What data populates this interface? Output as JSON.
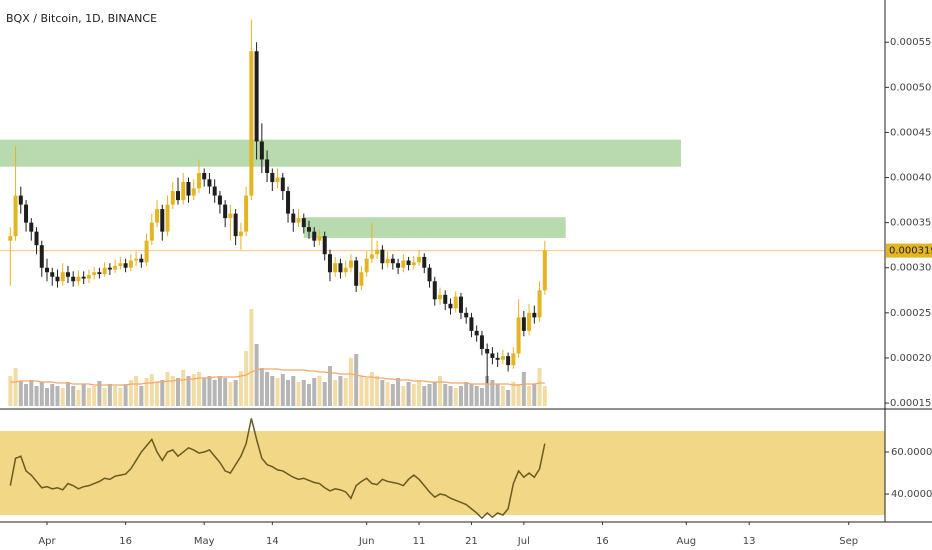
{
  "chart_data": {
    "type": "candlestick",
    "title": "BQX / Bitcoin, 1D, BINANCE",
    "x": [
      "03-25",
      "03-26",
      "03-27",
      "03-28",
      "03-29",
      "03-30",
      "03-31",
      "04-01",
      "04-02",
      "04-03",
      "04-04",
      "04-05",
      "04-06",
      "04-07",
      "04-08",
      "04-09",
      "04-10",
      "04-11",
      "04-12",
      "04-13",
      "04-14",
      "04-15",
      "04-16",
      "04-17",
      "04-18",
      "04-19",
      "04-20",
      "04-21",
      "04-22",
      "04-23",
      "04-24",
      "04-25",
      "04-26",
      "04-27",
      "04-28",
      "04-29",
      "04-30",
      "05-01",
      "05-02",
      "05-03",
      "05-04",
      "05-05",
      "05-06",
      "05-07",
      "05-08",
      "05-09",
      "05-10",
      "05-11",
      "05-12",
      "05-13",
      "05-14",
      "05-15",
      "05-16",
      "05-17",
      "05-18",
      "05-19",
      "05-20",
      "05-21",
      "05-22",
      "05-23",
      "05-24",
      "05-25",
      "05-26",
      "05-27",
      "05-28",
      "05-29",
      "05-30",
      "05-31",
      "06-01",
      "06-02",
      "06-03",
      "06-04",
      "06-05",
      "06-06",
      "06-07",
      "06-08",
      "06-09",
      "06-10",
      "06-11",
      "06-12",
      "06-13",
      "06-14",
      "06-15",
      "06-16",
      "06-17",
      "06-18",
      "06-19",
      "06-20",
      "06-21",
      "06-22",
      "06-23",
      "06-24",
      "06-25",
      "06-26",
      "06-27",
      "06-28",
      "06-29",
      "06-30",
      "07-01",
      "07-02",
      "07-03",
      "07-04",
      "07-05"
    ],
    "open": [
      0.00033,
      0.000335,
      0.00038,
      0.00037,
      0.00035,
      0.00034,
      0.000325,
      0.0003,
      0.000295,
      0.00029,
      0.000285,
      0.000295,
      0.00029,
      0.000285,
      0.00029,
      0.000288,
      0.000292,
      0.000295,
      0.000293,
      0.0003,
      0.000298,
      0.000302,
      0.000305,
      0.0003,
      0.000308,
      0.00031,
      0.000306,
      0.00033,
      0.00035,
      0.000365,
      0.00034,
      0.00037,
      0.000385,
      0.000375,
      0.000395,
      0.00038,
      0.000388,
      0.000405,
      0.000398,
      0.00039,
      0.00038,
      0.00037,
      0.000355,
      0.00036,
      0.000335,
      0.00034,
      0.00038,
      0.00054,
      0.00044,
      0.00042,
      0.000405,
      0.000395,
      0.0004,
      0.000385,
      0.00036,
      0.00035,
      0.000355,
      0.000345,
      0.00034,
      0.00033,
      0.000335,
      0.000315,
      0.000295,
      0.000305,
      0.000295,
      0.0003,
      0.000308,
      0.00028,
      0.000295,
      0.00031,
      0.000315,
      0.00032,
      0.000305,
      0.00031,
      0.000305,
      0.0003,
      0.000308,
      0.000303,
      0.000306,
      0.000312,
      0.0003,
      0.000285,
      0.000265,
      0.00027,
      0.00026,
      0.000255,
      0.000268,
      0.00025,
      0.000245,
      0.00023,
      0.000225,
      0.00021,
      0.000205,
      0.0002,
      0.000198,
      0.000202,
      0.000192,
      0.000205,
      0.000245,
      0.00023,
      0.00025,
      0.000245,
      0.000275
    ],
    "high": [
      0.000345,
      0.000435,
      0.00039,
      0.000375,
      0.000355,
      0.000345,
      0.00033,
      0.00031,
      0.0003,
      0.000298,
      0.000305,
      0.000302,
      0.000296,
      0.000297,
      0.000296,
      0.000298,
      0.000301,
      0.0003,
      0.000306,
      0.000305,
      0.000309,
      0.000312,
      0.00031,
      0.000315,
      0.000318,
      0.000315,
      0.000338,
      0.00036,
      0.000375,
      0.00037,
      0.00038,
      0.000395,
      0.0004,
      0.000405,
      0.0004,
      0.000398,
      0.00042,
      0.00041,
      0.000405,
      0.000398,
      0.000385,
      0.000375,
      0.00037,
      0.000365,
      0.00035,
      0.00039,
      0.000575,
      0.00055,
      0.00046,
      0.00043,
      0.00041,
      0.00041,
      0.000405,
      0.00039,
      0.000365,
      0.000365,
      0.00036,
      0.000352,
      0.000345,
      0.000342,
      0.00034,
      0.00032,
      0.000312,
      0.00031,
      0.000308,
      0.000315,
      0.000312,
      0.000302,
      0.000318,
      0.00035,
      0.00033,
      0.000325,
      0.000318,
      0.000315,
      0.00031,
      0.000315,
      0.000312,
      0.000313,
      0.00032,
      0.000316,
      0.000304,
      0.00029,
      0.000278,
      0.000275,
      0.000266,
      0.000274,
      0.000272,
      0.000256,
      0.00025,
      0.000236,
      0.00023,
      0.000216,
      0.000212,
      0.000206,
      0.000209,
      0.000206,
      0.000212,
      0.000265,
      0.000252,
      0.00026,
      0.000258,
      0.000285,
      0.00033
    ],
    "low": [
      0.00028,
      0.00033,
      0.00036,
      0.00034,
      0.00033,
      0.000315,
      0.00029,
      0.000285,
      0.00028,
      0.000278,
      0.00028,
      0.000283,
      0.000279,
      0.00028,
      0.000282,
      0.000283,
      0.000287,
      0.000288,
      0.00029,
      0.000292,
      0.000294,
      0.000298,
      0.000295,
      0.000296,
      0.000302,
      0.0003,
      0.000302,
      0.000325,
      0.000345,
      0.00033,
      0.000335,
      0.000365,
      0.00037,
      0.00037,
      0.000372,
      0.000375,
      0.000383,
      0.00039,
      0.000382,
      0.000372,
      0.00036,
      0.000345,
      0.00033,
      0.000325,
      0.00032,
      0.000335,
      0.000375,
      0.00042,
      0.000405,
      0.000395,
      0.000385,
      0.000388,
      0.000375,
      0.00035,
      0.00034,
      0.000345,
      0.000338,
      0.000332,
      0.000323,
      0.000325,
      0.000308,
      0.000285,
      0.00029,
      0.000288,
      0.00029,
      0.000295,
      0.000273,
      0.000275,
      0.00029,
      0.000305,
      0.00031,
      0.000298,
      0.0003,
      0.000298,
      0.000293,
      0.000295,
      0.000297,
      0.000298,
      0.000302,
      0.000294,
      0.000278,
      0.000258,
      0.000259,
      0.000253,
      0.000248,
      0.00025,
      0.000243,
      0.000238,
      0.000223,
      0.000218,
      0.000203,
      0.000172,
      0.000193,
      0.00019,
      0.000193,
      0.000185,
      0.000188,
      0.0002,
      0.000224,
      0.000225,
      0.000238,
      0.00024,
      0.00027
    ],
    "close": [
      0.000335,
      0.00038,
      0.00037,
      0.00035,
      0.00034,
      0.000325,
      0.0003,
      0.000295,
      0.00029,
      0.000285,
      0.000295,
      0.00029,
      0.000285,
      0.00029,
      0.000288,
      0.000292,
      0.000295,
      0.000293,
      0.0003,
      0.000298,
      0.000302,
      0.000305,
      0.0003,
      0.000308,
      0.00031,
      0.000306,
      0.00033,
      0.00035,
      0.000365,
      0.00034,
      0.00037,
      0.000385,
      0.000375,
      0.000395,
      0.00038,
      0.000388,
      0.000405,
      0.000398,
      0.00039,
      0.00038,
      0.00037,
      0.000355,
      0.00036,
      0.000335,
      0.00034,
      0.00038,
      0.00054,
      0.00044,
      0.00042,
      0.000405,
      0.000395,
      0.0004,
      0.000385,
      0.00036,
      0.00035,
      0.000355,
      0.000345,
      0.00034,
      0.00033,
      0.000335,
      0.000315,
      0.000295,
      0.000305,
      0.000295,
      0.0003,
      0.000308,
      0.00028,
      0.000295,
      0.00031,
      0.000315,
      0.00032,
      0.000305,
      0.00031,
      0.000305,
      0.0003,
      0.000308,
      0.000303,
      0.000306,
      0.000312,
      0.0003,
      0.000285,
      0.000265,
      0.00027,
      0.00026,
      0.000255,
      0.000268,
      0.00025,
      0.000245,
      0.00023,
      0.000225,
      0.00021,
      0.000205,
      0.0002,
      0.000198,
      0.000202,
      0.000192,
      0.000205,
      0.000245,
      0.00023,
      0.00025,
      0.000245,
      0.000275,
      0.00031902
    ],
    "up_color": "#e5b423",
    "down_color": "#1e1e1e",
    "price_line_color": "#f3c77a",
    "ylim": [
      0.0001445,
      0.0005968
    ],
    "yticks": [
      {
        "value": 0.00015,
        "label": "0.00015000"
      },
      {
        "value": 0.0002,
        "label": "0.00020000"
      },
      {
        "value": 0.00025,
        "label": "0.00025000"
      },
      {
        "value": 0.0003,
        "label": "0.00030000"
      },
      {
        "value": 0.00035,
        "label": "0.00035000"
      },
      {
        "value": 0.0004,
        "label": "0.00040000"
      },
      {
        "value": 0.00045,
        "label": "0.00045000"
      },
      {
        "value": 0.0005,
        "label": "0.00050000"
      },
      {
        "value": 0.00055,
        "label": "0.00055000"
      }
    ],
    "xticks": [
      {
        "value": "04-01",
        "label": "Apr"
      },
      {
        "value": "04-16",
        "label": "16"
      },
      {
        "value": "05-01",
        "label": "May"
      },
      {
        "value": "05-14",
        "label": "14"
      },
      {
        "value": "06-01",
        "label": "Jun"
      },
      {
        "value": "06-11",
        "label": "11"
      },
      {
        "value": "06-21",
        "label": "21"
      },
      {
        "value": "07-01",
        "label": "Jul"
      },
      {
        "value": "07-16",
        "label": "16"
      },
      {
        "value": "08-01",
        "label": "Aug"
      },
      {
        "value": "08-13",
        "label": "13"
      },
      {
        "value": "09-01",
        "label": "Sep"
      }
    ],
    "zones": [
      {
        "x": [
          "03-23",
          "07-31"
        ],
        "y": [
          0.000412,
          0.000442
        ]
      },
      {
        "x": [
          "05-20",
          "07-09"
        ],
        "y": [
          0.000333,
          0.000356
        ]
      }
    ],
    "zone_color": "#9fcf93",
    "volume": {
      "values": [
        30,
        38,
        25,
        22,
        26,
        20,
        24,
        18,
        22,
        20,
        18,
        24,
        20,
        16,
        22,
        18,
        20,
        25,
        18,
        22,
        20,
        18,
        22,
        26,
        30,
        20,
        28,
        32,
        24,
        26,
        34,
        30,
        28,
        36,
        30,
        32,
        34,
        28,
        30,
        26,
        30,
        28,
        24,
        26,
        35,
        55,
        97,
        62,
        38,
        34,
        30,
        28,
        32,
        26,
        30,
        24,
        26,
        22,
        28,
        30,
        24,
        40,
        26,
        30,
        28,
        48,
        52,
        30,
        28,
        34,
        30,
        26,
        24,
        22,
        28,
        20,
        24,
        22,
        26,
        20,
        22,
        24,
        30,
        22,
        20,
        18,
        20,
        24,
        22,
        20,
        18,
        30,
        26,
        22,
        20,
        16,
        24,
        22,
        34,
        20,
        22,
        38,
        20
      ],
      "ma": [
        24,
        24,
        25,
        25,
        25,
        25,
        24,
        24,
        24,
        23,
        23,
        23,
        22,
        22,
        22,
        22,
        21,
        21,
        21,
        21,
        21,
        21,
        21,
        22,
        22,
        22,
        23,
        23,
        24,
        24,
        25,
        25,
        26,
        26,
        27,
        27,
        28,
        28,
        28,
        29,
        29,
        29,
        29,
        29,
        30,
        31,
        34,
        36,
        37,
        37,
        37,
        37,
        36,
        36,
        36,
        36,
        36,
        35,
        35,
        34,
        34,
        33,
        33,
        32,
        32,
        32,
        31,
        30,
        29,
        29,
        28,
        28,
        27,
        27,
        26,
        26,
        26,
        25,
        25,
        25,
        24,
        24,
        24,
        24,
        23,
        23,
        23,
        23,
        22,
        22,
        22,
        22,
        22,
        22,
        22,
        22,
        21,
        21,
        22,
        22,
        22,
        23,
        23
      ],
      "up_color": "#f2dca4",
      "down_color": "#b5b5b5",
      "ma_color": "#f4a66a"
    },
    "rsi": {
      "values": [
        44,
        57,
        58,
        51,
        49,
        46,
        43,
        43.5,
        42.5,
        43,
        42,
        45,
        44,
        42.5,
        43.5,
        44,
        45,
        46,
        47.5,
        47,
        48.5,
        49,
        49.5,
        52,
        56,
        60,
        63,
        66,
        60,
        56,
        60,
        61,
        58,
        60,
        62,
        61,
        59.5,
        60,
        61,
        58,
        55,
        51,
        50,
        54,
        58,
        64,
        76,
        66,
        57,
        54,
        53,
        51.5,
        51,
        49.5,
        48,
        47,
        47.5,
        46.5,
        45.5,
        45,
        43,
        41.5,
        42.5,
        42,
        41,
        38,
        44,
        46,
        47.5,
        45,
        44.5,
        47,
        46,
        45.5,
        45,
        44,
        47,
        49,
        47,
        44,
        41,
        38.5,
        40,
        39.5,
        38,
        37,
        36,
        35,
        33,
        31,
        28.5,
        31,
        29,
        31,
        30,
        33,
        45,
        51,
        48,
        50,
        48,
        52,
        64
      ],
      "ylim": [
        26.7,
        80
      ],
      "yticks": [
        {
          "value": 60,
          "label": "60.0000"
        },
        {
          "value": 40,
          "label": "40.0000"
        }
      ],
      "band": [
        30,
        70
      ],
      "band_color": "#f1d786",
      "color": "#6a5a22"
    }
  }
}
